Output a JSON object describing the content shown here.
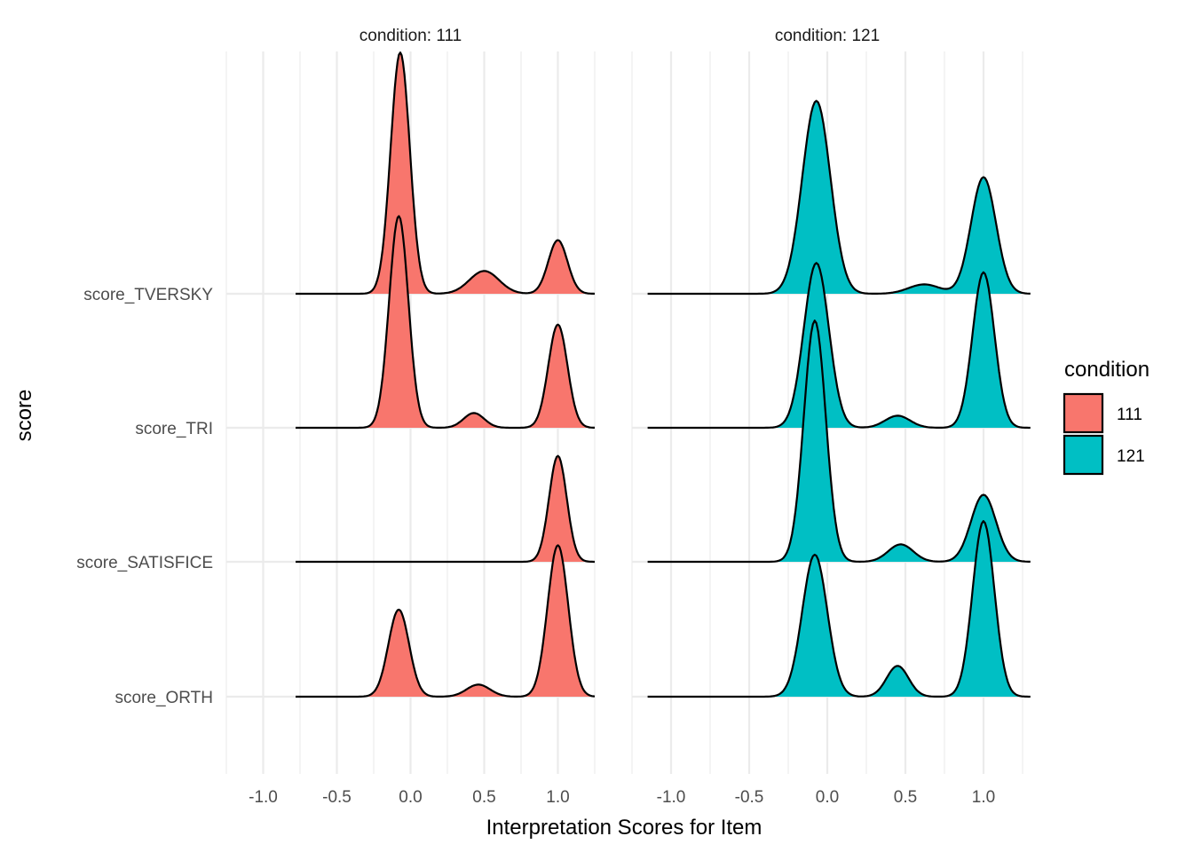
{
  "chart_data": {
    "type": "area",
    "subtype": "ridgeline",
    "title": "",
    "xlabel": "Interpretation Scores for Item",
    "ylabel": "score",
    "xlim": [
      -1.25,
      1.25
    ],
    "x_ticks": [
      -1.0,
      -0.5,
      0.0,
      0.5,
      1.0
    ],
    "x_tick_labels": [
      "-1.0",
      "-0.5",
      "0.0",
      "0.5",
      "1.0"
    ],
    "categories": [
      "score_TVERSKY",
      "score_TRI",
      "score_SATISFICE",
      "score_ORTH"
    ],
    "grid": true,
    "legend": {
      "title": "condition",
      "position": "right",
      "entries": [
        {
          "label": "111",
          "color": "#F8766D"
        },
        {
          "label": "121",
          "color": "#00BFC4"
        }
      ]
    },
    "facets": [
      {
        "strip": "condition: 111",
        "condition": "111",
        "color": "#F8766D",
        "ridges": [
          {
            "category": "score_TVERSKY",
            "range": [
              -0.78,
              1.25
            ],
            "peaks": [
              [
                -0.07,
                1.8,
                0.065
              ],
              [
                0.5,
                0.17,
                0.1
              ],
              [
                1.0,
                0.4,
                0.065
              ]
            ]
          },
          {
            "category": "score_TRI",
            "range": [
              -0.78,
              1.25
            ],
            "peaks": [
              [
                -0.08,
                1.58,
                0.065
              ],
              [
                0.43,
                0.11,
                0.07
              ],
              [
                1.0,
                0.77,
                0.065
              ]
            ]
          },
          {
            "category": "score_SATISFICE",
            "range": [
              -0.78,
              1.25
            ],
            "peaks": [
              [
                1.0,
                0.79,
                0.06
              ]
            ]
          },
          {
            "category": "score_ORTH",
            "range": [
              -0.78,
              1.25
            ],
            "peaks": [
              [
                -0.08,
                0.65,
                0.07
              ],
              [
                0.46,
                0.09,
                0.08
              ],
              [
                1.0,
                1.13,
                0.07
              ]
            ]
          }
        ]
      },
      {
        "strip": "condition: 121",
        "condition": "121",
        "color": "#00BFC4",
        "ridges": [
          {
            "category": "score_TVERSKY",
            "range": [
              -1.15,
              1.3
            ],
            "peaks": [
              [
                -0.07,
                1.44,
                0.09
              ],
              [
                0.62,
                0.07,
                0.1
              ],
              [
                1.0,
                0.87,
                0.08
              ]
            ]
          },
          {
            "category": "score_TRI",
            "range": [
              -1.15,
              1.3
            ],
            "peaks": [
              [
                -0.07,
                1.23,
                0.08
              ],
              [
                0.45,
                0.09,
                0.08
              ],
              [
                1.0,
                1.16,
                0.07
              ]
            ]
          },
          {
            "category": "score_SATISFICE",
            "range": [
              -1.15,
              1.3
            ],
            "peaks": [
              [
                -0.08,
                1.8,
                0.07
              ],
              [
                0.47,
                0.13,
                0.08
              ],
              [
                1.0,
                0.5,
                0.08
              ]
            ]
          },
          {
            "category": "score_ORTH",
            "range": [
              -1.15,
              1.3
            ],
            "peaks": [
              [
                -0.08,
                1.06,
                0.08
              ],
              [
                0.45,
                0.23,
                0.07
              ],
              [
                1.0,
                1.31,
                0.07
              ]
            ]
          }
        ]
      }
    ]
  }
}
